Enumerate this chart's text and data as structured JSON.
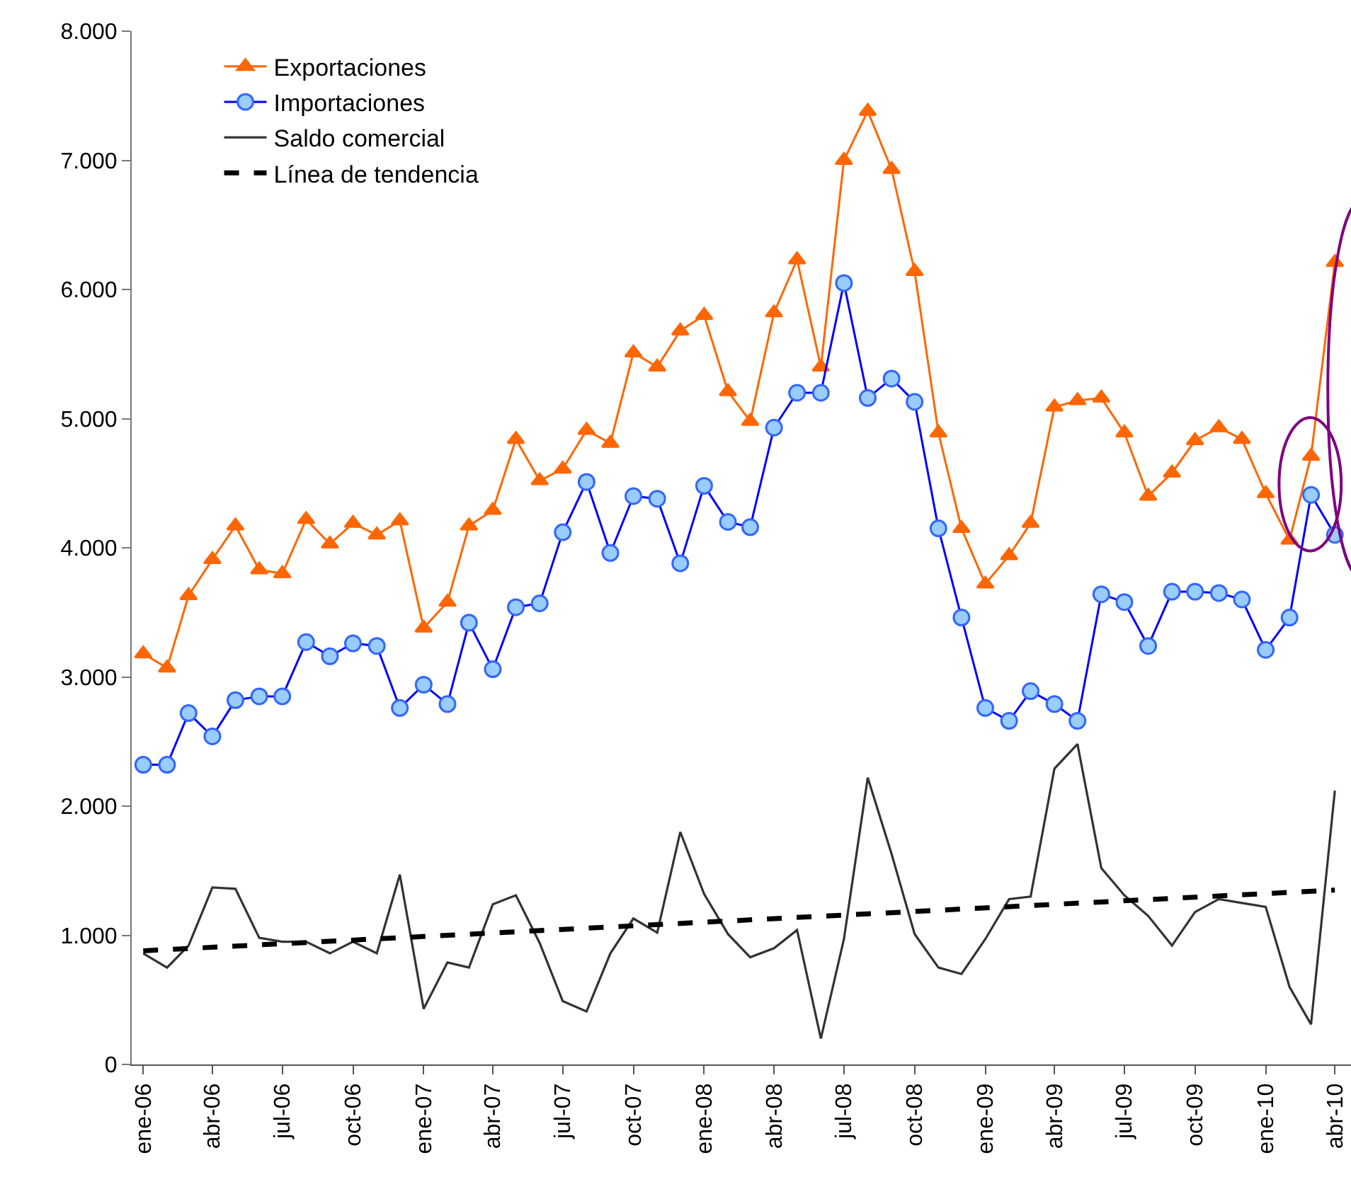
{
  "chart_data": {
    "type": "line",
    "x": [
      "2006-01",
      "2006-02",
      "2006-03",
      "2006-04",
      "2006-05",
      "2006-06",
      "2006-07",
      "2006-08",
      "2006-09",
      "2006-10",
      "2006-11",
      "2006-12",
      "2007-01",
      "2007-02",
      "2007-03",
      "2007-04",
      "2007-05",
      "2007-06",
      "2007-07",
      "2007-08",
      "2007-09",
      "2007-10",
      "2007-11",
      "2007-12",
      "2008-01",
      "2008-02",
      "2008-03",
      "2008-04",
      "2008-05",
      "2008-06",
      "2008-07",
      "2008-08",
      "2008-09",
      "2008-10",
      "2008-11",
      "2008-12",
      "2009-01",
      "2009-02",
      "2009-03",
      "2009-04",
      "2009-05",
      "2009-06",
      "2009-07",
      "2009-08",
      "2009-09",
      "2009-10",
      "2009-11",
      "2009-12",
      "2010-01",
      "2010-02",
      "2010-03",
      "2010-04"
    ],
    "series": [
      {
        "name": "Exportaciones",
        "color": "#ff6600",
        "marker": "triangle",
        "values": [
          3180,
          3070,
          3630,
          3910,
          4170,
          3830,
          3800,
          4220,
          4030,
          4190,
          4100,
          4210,
          3380,
          3580,
          4170,
          4290,
          4840,
          4520,
          4610,
          4910,
          4810,
          5510,
          5400,
          5680,
          5800,
          5210,
          4980,
          5820,
          6230,
          5400,
          7000,
          7380,
          6930,
          6140,
          4890,
          4150,
          3720,
          3940,
          4190,
          5090,
          5140,
          5160,
          4890,
          4400,
          4580,
          4830,
          4930,
          4840,
          4420,
          4060,
          4710,
          6210
        ]
      },
      {
        "name": "Importaciones",
        "color": "#0000ff",
        "marker": "circle",
        "values": [
          2320,
          2320,
          2720,
          2540,
          2820,
          2850,
          2850,
          3270,
          3160,
          3260,
          3240,
          2760,
          2940,
          2790,
          3420,
          3060,
          3540,
          3570,
          4120,
          4510,
          3960,
          4400,
          4380,
          3880,
          4480,
          4200,
          4160,
          4930,
          5200,
          5200,
          6050,
          5160,
          5310,
          5130,
          4150,
          3460,
          2760,
          2660,
          2890,
          2790,
          2660,
          3640,
          3580,
          3240,
          3660,
          3660,
          3650,
          3600,
          3210,
          3460,
          4410,
          4100
        ]
      },
      {
        "name": "Saldo comercial",
        "color": "#333333",
        "marker": "none",
        "values": [
          860,
          750,
          920,
          1370,
          1360,
          980,
          950,
          950,
          860,
          950,
          860,
          1470,
          430,
          790,
          750,
          1240,
          1310,
          940,
          490,
          410,
          860,
          1130,
          1020,
          1800,
          1320,
          1010,
          830,
          900,
          1040,
          200,
          970,
          2220,
          1630,
          1010,
          750,
          700,
          970,
          1280,
          1300,
          2290,
          2480,
          1520,
          1310,
          1150,
          920,
          1180,
          1280,
          1250,
          1220,
          600,
          310,
          2120
        ]
      },
      {
        "name": "Línea de tendencia",
        "color": "#000000",
        "marker": "none",
        "line_style": "dashed",
        "x": [
          "2006-01",
          "2010-04"
        ],
        "values": [
          880,
          1350
        ]
      }
    ],
    "xlim": [
      "2005-12-17",
      "2010-04-22"
    ],
    "xticks": [
      {
        "value": "2006-01",
        "label": "ene-06"
      },
      {
        "value": "2006-04",
        "label": "abr-06"
      },
      {
        "value": "2006-07",
        "label": "jul-06"
      },
      {
        "value": "2006-10",
        "label": "oct-06"
      },
      {
        "value": "2007-01",
        "label": "ene-07"
      },
      {
        "value": "2007-04",
        "label": "abr-07"
      },
      {
        "value": "2007-07",
        "label": "jul-07"
      },
      {
        "value": "2007-10",
        "label": "oct-07"
      },
      {
        "value": "2008-01",
        "label": "ene-08"
      },
      {
        "value": "2008-04",
        "label": "abr-08"
      },
      {
        "value": "2008-07",
        "label": "jul-08"
      },
      {
        "value": "2008-10",
        "label": "oct-08"
      },
      {
        "value": "2009-01",
        "label": "ene-09"
      },
      {
        "value": "2009-04",
        "label": "abr-09"
      },
      {
        "value": "2009-07",
        "label": "jul-09"
      },
      {
        "value": "2009-10",
        "label": "oct-09"
      },
      {
        "value": "2010-01",
        "label": "ene-10"
      },
      {
        "value": "2010-04",
        "label": "abr-10"
      }
    ],
    "ylim": [
      0,
      8000
    ],
    "yticks": [
      {
        "value": 0,
        "label": "0"
      },
      {
        "value": 1000,
        "label": "1.000"
      },
      {
        "value": 2000,
        "label": "2.000"
      },
      {
        "value": 3000,
        "label": "3.000"
      },
      {
        "value": 4000,
        "label": "4.000"
      },
      {
        "value": 5000,
        "label": "5.000"
      },
      {
        "value": 6000,
        "label": "6.000"
      },
      {
        "value": 7000,
        "label": "7.000"
      },
      {
        "value": 8000,
        "label": "8.000"
      }
    ],
    "legend": "top left"
  }
}
